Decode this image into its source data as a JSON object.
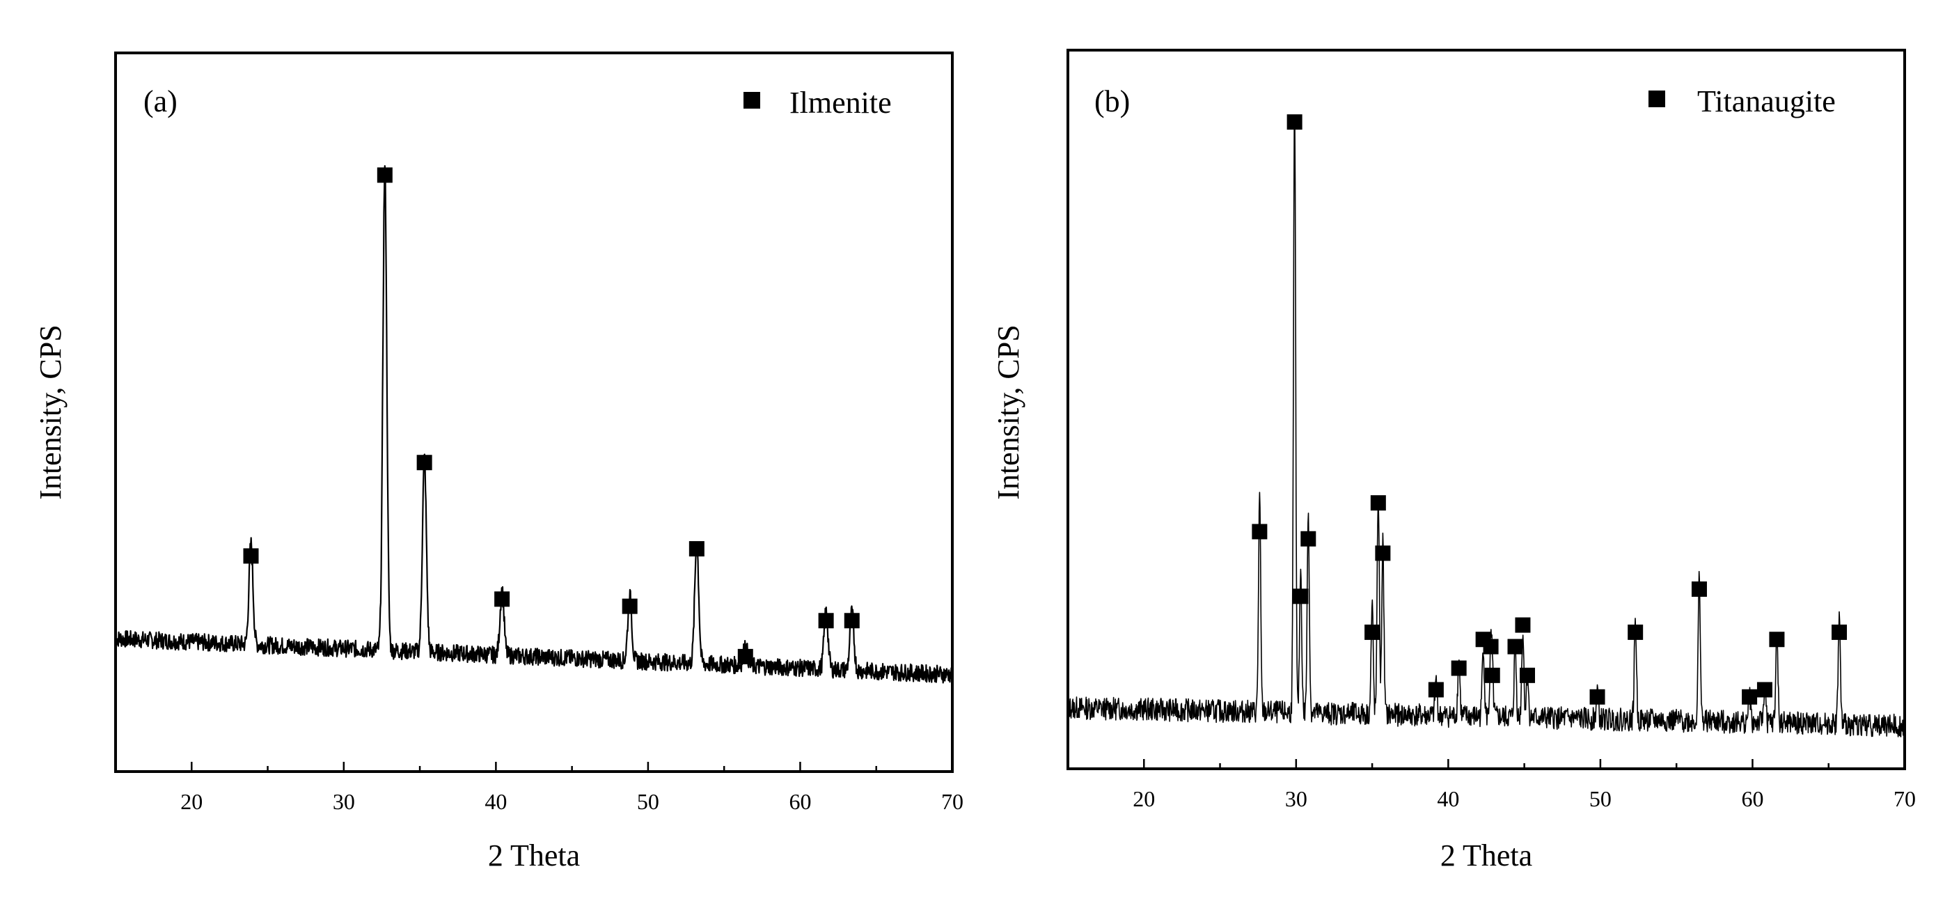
{
  "chart_data": [
    {
      "type": "line",
      "panel_tag": "(a)",
      "xlabel": "2 Theta",
      "ylabel": "Intensity, CPS",
      "xlim": [
        15,
        70
      ],
      "ylim": [
        0,
        100
      ],
      "xticks": [
        20,
        30,
        40,
        50,
        60,
        70
      ],
      "legend": {
        "label": "Ilmenite",
        "position": "top-right",
        "marker": "square"
      },
      "baseline": {
        "start": 18.5,
        "end": 13.5
      },
      "noise_amplitude": 1.2,
      "peak_width": 0.13,
      "peaks": [
        {
          "two_theta": 23.9,
          "intensity": 30
        },
        {
          "two_theta": 32.7,
          "intensity": 83
        },
        {
          "two_theta": 35.3,
          "intensity": 43
        },
        {
          "two_theta": 40.4,
          "intensity": 24
        },
        {
          "two_theta": 48.8,
          "intensity": 23
        },
        {
          "two_theta": 53.2,
          "intensity": 31
        },
        {
          "two_theta": 56.4,
          "intensity": 16
        },
        {
          "two_theta": 61.7,
          "intensity": 21
        },
        {
          "two_theta": 63.4,
          "intensity": 21
        }
      ],
      "peak_heights": [
        14,
        67,
        27,
        9,
        9,
        17,
        3,
        8,
        8
      ],
      "markers": [
        {
          "two_theta": 23.9,
          "intensity": 30
        },
        {
          "two_theta": 32.7,
          "intensity": 83
        },
        {
          "two_theta": 35.3,
          "intensity": 43
        },
        {
          "two_theta": 40.4,
          "intensity": 24
        },
        {
          "two_theta": 48.8,
          "intensity": 23
        },
        {
          "two_theta": 53.2,
          "intensity": 31
        },
        {
          "two_theta": 56.4,
          "intensity": 16
        },
        {
          "two_theta": 61.7,
          "intensity": 21
        },
        {
          "two_theta": 63.4,
          "intensity": 21
        }
      ]
    },
    {
      "type": "line",
      "panel_tag": "(b)",
      "xlabel": "2 Theta",
      "ylabel": "Intensity, CPS",
      "xlim": [
        15,
        70
      ],
      "ylim": [
        0,
        100
      ],
      "xticks": [
        20,
        30,
        40,
        50,
        60,
        70
      ],
      "legend": {
        "label": "Titanaugite",
        "position": "top-right",
        "marker": "square"
      },
      "baseline": {
        "start": 8.5,
        "end": 6.0
      },
      "noise_amplitude": 1.6,
      "peak_width": 0.07,
      "peaks": [
        {
          "two_theta": 27.6,
          "intensity": 33
        },
        {
          "two_theta": 29.9,
          "intensity": 90
        },
        {
          "two_theta": 30.3,
          "intensity": 24
        },
        {
          "two_theta": 30.8,
          "intensity": 32
        },
        {
          "two_theta": 35.0,
          "intensity": 19
        },
        {
          "two_theta": 35.4,
          "intensity": 37
        },
        {
          "two_theta": 35.7,
          "intensity": 30
        },
        {
          "two_theta": 39.2,
          "intensity": 11
        },
        {
          "two_theta": 40.7,
          "intensity": 14
        },
        {
          "two_theta": 42.3,
          "intensity": 18
        },
        {
          "two_theta": 42.8,
          "intensity": 17
        },
        {
          "two_theta": 42.9,
          "intensity": 13
        },
        {
          "two_theta": 44.4,
          "intensity": 17
        },
        {
          "two_theta": 44.9,
          "intensity": 20
        },
        {
          "two_theta": 45.2,
          "intensity": 13
        },
        {
          "two_theta": 49.8,
          "intensity": 10
        },
        {
          "two_theta": 52.3,
          "intensity": 19
        },
        {
          "two_theta": 56.5,
          "intensity": 25
        },
        {
          "two_theta": 59.8,
          "intensity": 10
        },
        {
          "two_theta": 60.8,
          "intensity": 11
        },
        {
          "two_theta": 61.6,
          "intensity": 18
        },
        {
          "two_theta": 65.7,
          "intensity": 19
        }
      ],
      "peak_heights": [
        30,
        85,
        20,
        28,
        15,
        31,
        24,
        5,
        8,
        10,
        9,
        5,
        10,
        12,
        6,
        4,
        14,
        20,
        4,
        5,
        12,
        15
      ],
      "markers": [
        {
          "two_theta": 27.6,
          "intensity": 33
        },
        {
          "two_theta": 29.9,
          "intensity": 90
        },
        {
          "two_theta": 30.3,
          "intensity": 24
        },
        {
          "two_theta": 30.8,
          "intensity": 32
        },
        {
          "two_theta": 35.0,
          "intensity": 19
        },
        {
          "two_theta": 35.4,
          "intensity": 37
        },
        {
          "two_theta": 35.7,
          "intensity": 30
        },
        {
          "two_theta": 39.2,
          "intensity": 11
        },
        {
          "two_theta": 40.7,
          "intensity": 14
        },
        {
          "two_theta": 42.3,
          "intensity": 18
        },
        {
          "two_theta": 42.8,
          "intensity": 17
        },
        {
          "two_theta": 42.9,
          "intensity": 13
        },
        {
          "two_theta": 44.4,
          "intensity": 17
        },
        {
          "two_theta": 44.9,
          "intensity": 20
        },
        {
          "two_theta": 45.2,
          "intensity": 13
        },
        {
          "two_theta": 49.8,
          "intensity": 10
        },
        {
          "two_theta": 52.3,
          "intensity": 19
        },
        {
          "two_theta": 56.5,
          "intensity": 25
        },
        {
          "two_theta": 59.8,
          "intensity": 10
        },
        {
          "two_theta": 60.8,
          "intensity": 11
        },
        {
          "two_theta": 61.6,
          "intensity": 18
        },
        {
          "two_theta": 65.7,
          "intensity": 19
        }
      ]
    }
  ]
}
